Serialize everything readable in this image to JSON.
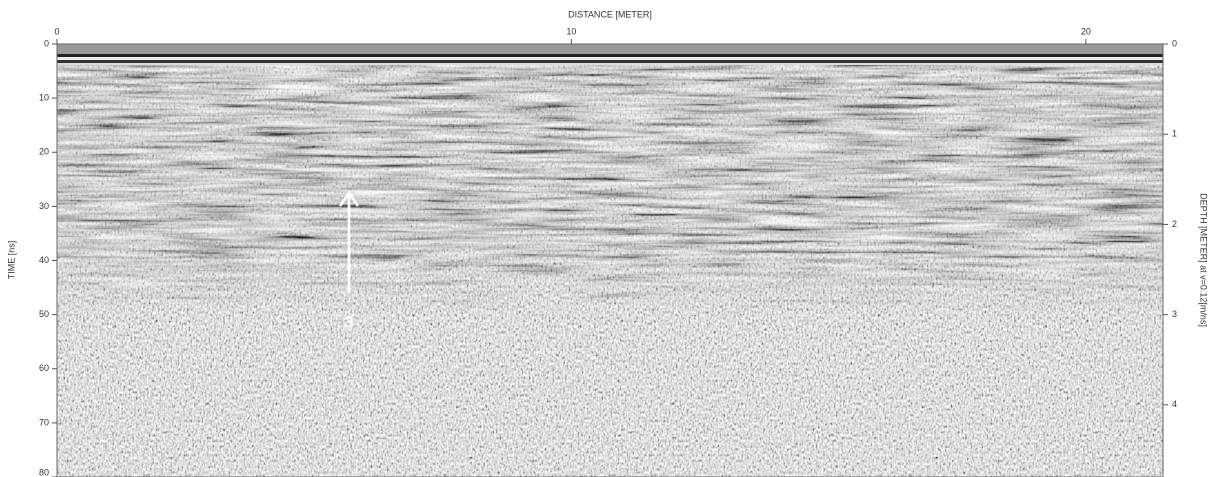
{
  "chart_data": {
    "type": "radargram",
    "x_label": "DISTANCE [METER]",
    "y_label": "TIME [ns]",
    "y2_label": "DEPTH [METER] at v=0.12[m/ns]",
    "xlim": [
      0,
      21.5
    ],
    "xticks": [
      0,
      10,
      20
    ],
    "ylim": [
      80,
      0
    ],
    "yticks": [
      0,
      10,
      20,
      30,
      40,
      50,
      60,
      70,
      80
    ],
    "y2lim": [
      4.8,
      0
    ],
    "y2ticks": [
      0,
      1,
      2,
      3,
      4
    ],
    "annotations": [
      {
        "text": "3"
      }
    ]
  }
}
